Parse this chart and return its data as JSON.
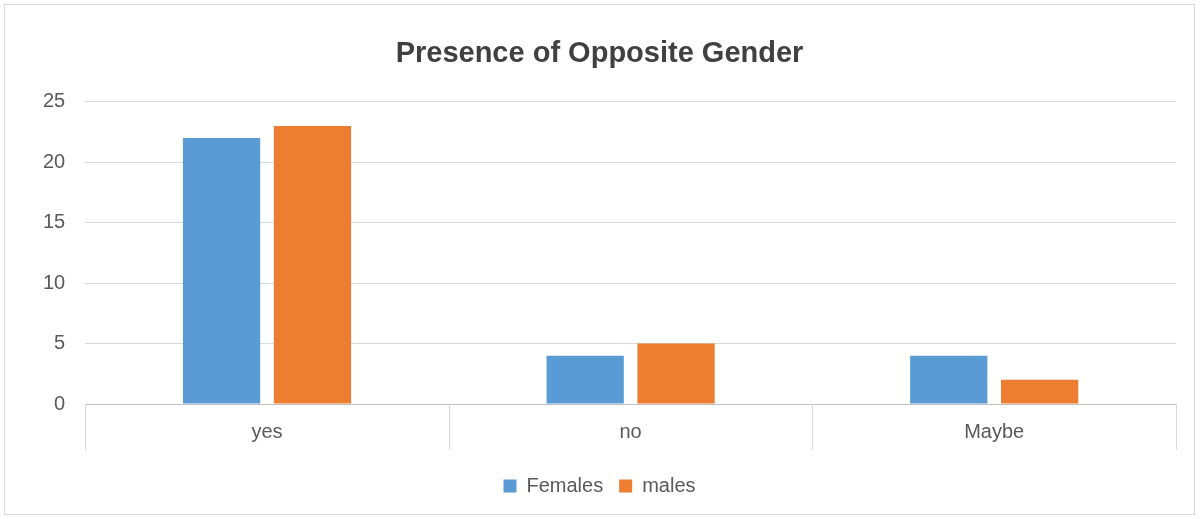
{
  "chart_data": {
    "type": "bar",
    "title": "Presence of Opposite Gender",
    "categories": [
      "yes",
      "no",
      "Maybe"
    ],
    "series": [
      {
        "name": "Females",
        "color": "#5b9bd5",
        "values": [
          22,
          4,
          4
        ]
      },
      {
        "name": "males",
        "color": "#ed7d31",
        "values": [
          23,
          5,
          2
        ]
      }
    ],
    "ylim": [
      0,
      25
    ],
    "yticks": [
      0,
      5,
      10,
      15,
      20,
      25
    ],
    "grid": "y",
    "legend": "bottom"
  }
}
